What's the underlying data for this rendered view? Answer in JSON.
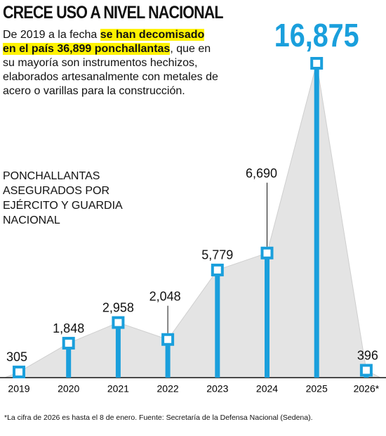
{
  "chart_data": {
    "type": "bar",
    "title": "CRECE USO A NIVEL NACIONAL",
    "intro": {
      "before": "De 2019 a la fecha",
      "highlight": "se han decomisado en el país 36,899 ponchallantas",
      "after": ", que en su mayoría son instrumentos hechizos, elaborados artesanalmente con metales de acero o varillas para la construcción."
    },
    "subtitle": "PONCHALLANTAS ASEGURADOS POR EJÉRCITO Y GUARDIA NACIONAL",
    "categories": [
      "2019",
      "2020",
      "2021",
      "2022",
      "2023",
      "2024",
      "2025",
      "2026*"
    ],
    "values": [
      305,
      1848,
      2958,
      2048,
      5779,
      6690,
      16875,
      396
    ],
    "value_labels": [
      "305",
      "1,848",
      "2,958",
      "2,048",
      "5,779",
      "6,690",
      "16,875",
      "396"
    ],
    "color": "#1a9fdc",
    "note": "*La cifra de 2026 es hasta el 8 de enero. Fuente: Secretaría de la Defensa Nacional (Sedena)."
  }
}
